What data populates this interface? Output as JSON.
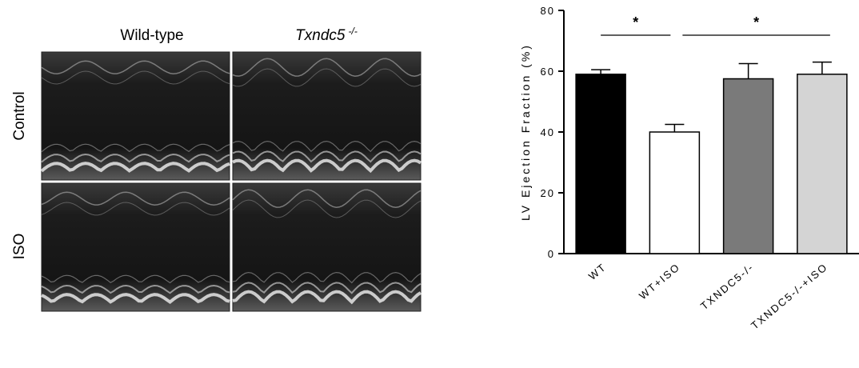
{
  "panel": {
    "columns": [
      "Wild-type",
      "Txndc5"
    ],
    "column_superscript": "-/-",
    "rows": [
      "Control",
      "ISO"
    ]
  },
  "chart_data": {
    "type": "bar",
    "y_label": "LV Ejection Fraction (%)",
    "categories": [
      "WT",
      "WT+ISO",
      "TXNDC5-/-",
      "TXNDC5-/-+ISO"
    ],
    "values": [
      59,
      40,
      57.5,
      59
    ],
    "errors": [
      1.5,
      2.5,
      5,
      4
    ],
    "colors": [
      "#000000",
      "#ffffff",
      "#7a7a7a",
      "#d4d4d4"
    ],
    "ylim": [
      0,
      80
    ],
    "yticks": [
      0,
      20,
      40,
      60,
      80
    ],
    "annotations": [
      {
        "text": "*",
        "from": 0,
        "to": 1
      },
      {
        "text": "*",
        "from": 1,
        "to": 3
      }
    ]
  }
}
